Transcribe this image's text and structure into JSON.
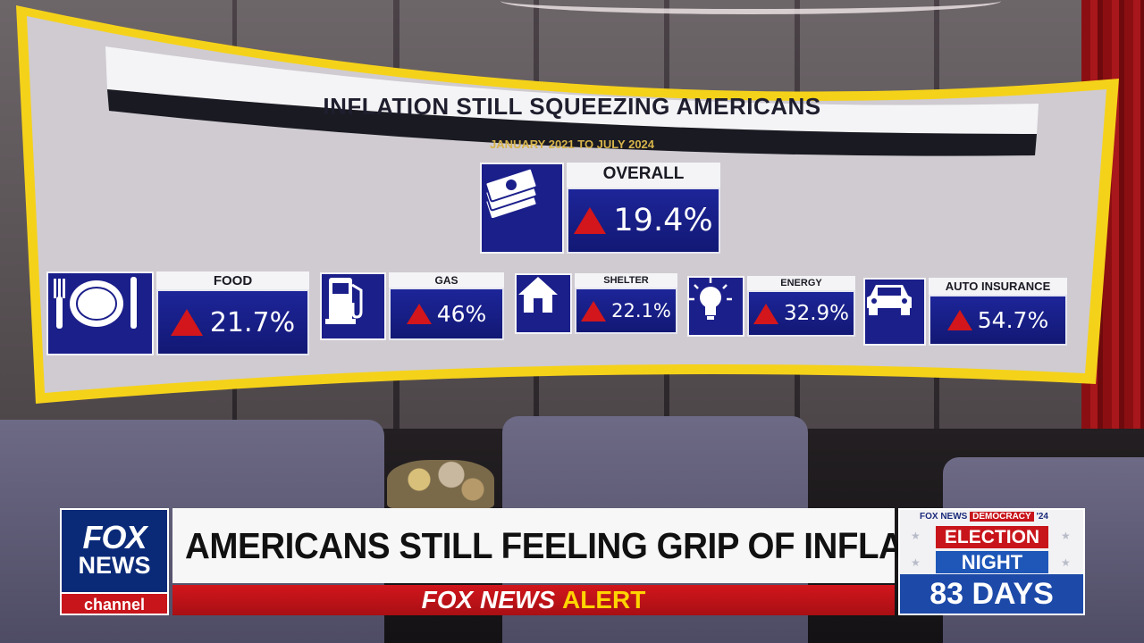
{
  "graphic": {
    "title": "INFLATION STILL SQUEEZING AMERICANS",
    "subtitle": "JANUARY 2021 TO JULY 2024",
    "overall": {
      "label": "OVERALL",
      "value": "19.4%",
      "icon": "money-stack-icon"
    },
    "categories": [
      {
        "label": "FOOD",
        "value": "21.7%",
        "icon": "plate-icon"
      },
      {
        "label": "GAS",
        "value": "46%",
        "icon": "gas-pump-icon"
      },
      {
        "label": "SHELTER",
        "value": "22.1%",
        "icon": "house-icon"
      },
      {
        "label": "ENERGY",
        "value": "32.9%",
        "icon": "lightbulb-icon"
      },
      {
        "label": "AUTO INSURANCE",
        "value": "54.7%",
        "icon": "car-icon"
      }
    ],
    "colors": {
      "frame": "#f5d21a",
      "tile_blue": "#1b1f8a",
      "up_arrow": "#d2161c"
    }
  },
  "lower_third": {
    "logo": {
      "line1": "FOX",
      "line2": "NEWS",
      "line3": "channel"
    },
    "headline": "AMERICANS STILL FEELING GRIP OF INFLATION",
    "alert": {
      "brand": "FOX NEWS",
      "word": "ALERT"
    },
    "election": {
      "tag_brand": "FOX NEWS",
      "tag_word": "DEMOCRACY",
      "tag_year": "'24",
      "line1": "ELECTION",
      "line2": "NIGHT",
      "countdown": "83 DAYS"
    }
  }
}
